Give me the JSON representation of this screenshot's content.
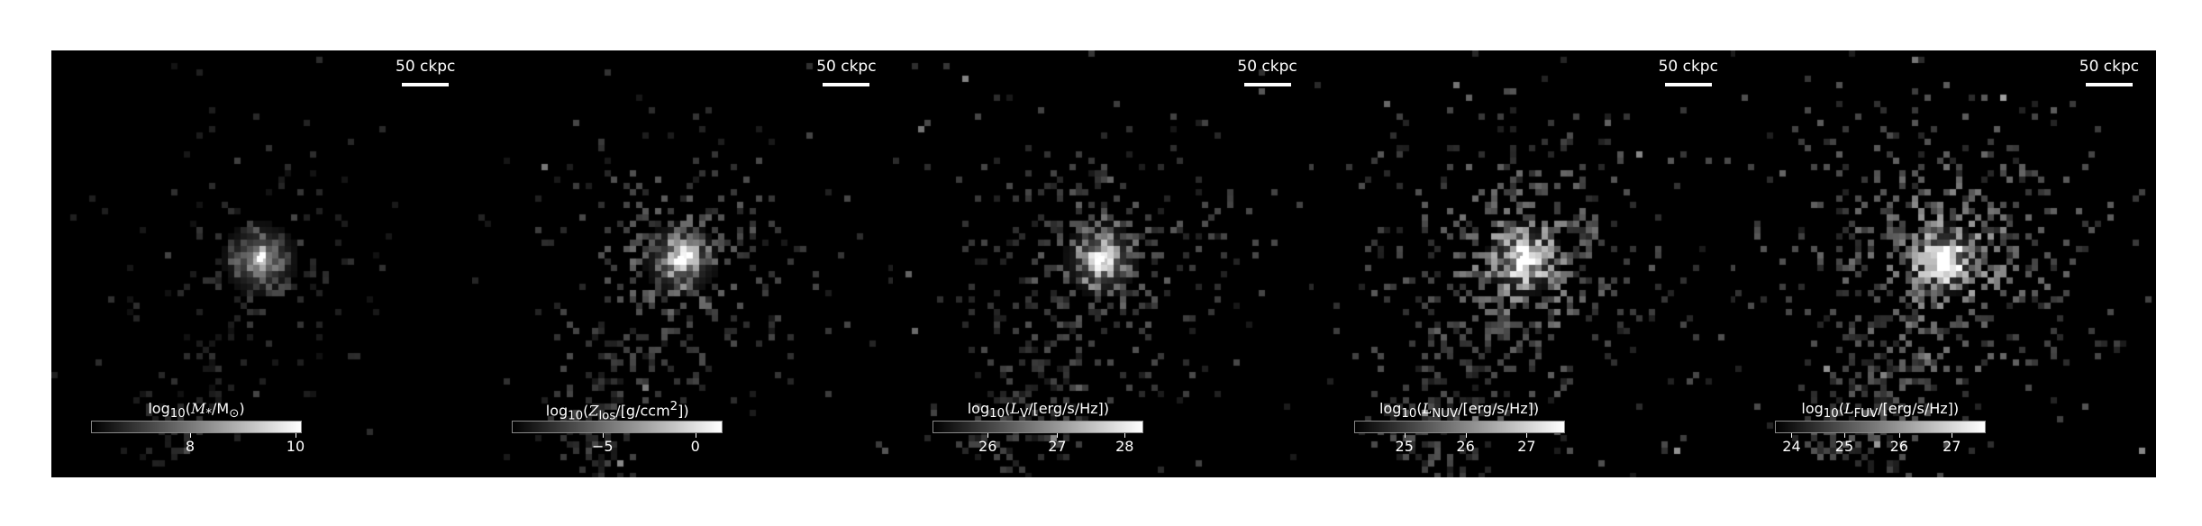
{
  "scalebar": "50 ckpc",
  "panels": [
    {
      "cbar_pre": "log",
      "cbar_sub": "10",
      "cbar_var": "M",
      "cbar_var_sub": "*",
      "cbar_rest": "/M",
      "cbar_rest_sub": "⊙",
      "cbar_tail": ")",
      "ticks": [
        {
          "label": "8",
          "frac": 0.47
        },
        {
          "label": "10",
          "frac": 0.97
        }
      ],
      "brightness": 0.55,
      "spread": 0.45
    },
    {
      "cbar_pre": "log",
      "cbar_sub": "10",
      "cbar_var": "Z",
      "cbar_var_sub": "los",
      "cbar_rest": "/[g/ccm",
      "cbar_rest_sub": "",
      "cbar_sup": "2",
      "cbar_tail": "])",
      "ticks": [
        {
          "label": "−5",
          "frac": 0.43
        },
        {
          "label": "0",
          "frac": 0.87
        }
      ],
      "brightness": 0.8,
      "spread": 0.75
    },
    {
      "cbar_pre": "log",
      "cbar_sub": "10",
      "cbar_var": "L",
      "cbar_var_sub": "V",
      "cbar_rest": "/[erg/s/Hz]",
      "cbar_rest_sub": "",
      "cbar_tail": ")",
      "ticks": [
        {
          "label": "26",
          "frac": 0.26
        },
        {
          "label": "27",
          "frac": 0.59
        },
        {
          "label": "28",
          "frac": 0.91
        }
      ],
      "brightness": 0.8,
      "spread": 0.8
    },
    {
      "cbar_pre": "log",
      "cbar_sub": "10",
      "cbar_var": "L",
      "cbar_var_sub": "NUV",
      "cbar_rest": "/[erg/s/Hz]",
      "cbar_rest_sub": "",
      "cbar_tail": ")",
      "ticks": [
        {
          "label": "25",
          "frac": 0.24
        },
        {
          "label": "26",
          "frac": 0.53
        },
        {
          "label": "27",
          "frac": 0.82
        }
      ],
      "brightness": 0.95,
      "spread": 0.95
    },
    {
      "cbar_pre": "log",
      "cbar_sub": "10",
      "cbar_var": "L",
      "cbar_var_sub": "FUV",
      "cbar_rest": "/[erg/s/Hz]",
      "cbar_rest_sub": "",
      "cbar_tail": ")",
      "ticks": [
        {
          "label": "24",
          "frac": 0.08
        },
        {
          "label": "25",
          "frac": 0.33
        },
        {
          "label": "26",
          "frac": 0.59
        },
        {
          "label": "27",
          "frac": 0.84
        }
      ],
      "brightness": 1.0,
      "spread": 1.0
    }
  ]
}
